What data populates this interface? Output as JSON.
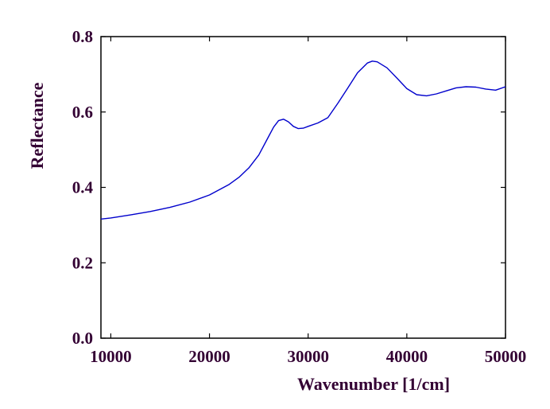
{
  "chart_data": {
    "type": "line",
    "title": "",
    "xlabel": "Wavenumber [1/cm]",
    "ylabel": "Reflectance",
    "xlim": [
      9000,
      50000
    ],
    "ylim": [
      0.0,
      0.8
    ],
    "xticks": [
      10000,
      20000,
      30000,
      40000,
      50000
    ],
    "xtick_labels": [
      "10000",
      "20000",
      "30000",
      "40000",
      "50000"
    ],
    "yticks": [
      0.0,
      0.2,
      0.4,
      0.6,
      0.8
    ],
    "ytick_labels": [
      "0.0",
      "0.2",
      "0.4",
      "0.6",
      "0.8"
    ],
    "grid": false,
    "legend": "none",
    "colors": {
      "line": "#0000cc",
      "text": "#330033",
      "axes": "#000000"
    },
    "series": [
      {
        "x": [
          9000,
          10000,
          12000,
          14000,
          16000,
          18000,
          20000,
          22000,
          23000,
          24000,
          25000,
          26000,
          26500,
          27000,
          27500,
          28000,
          28500,
          29000,
          29500,
          30000,
          31000,
          32000,
          33000,
          34000,
          35000,
          36000,
          36500,
          37000,
          38000,
          39000,
          40000,
          41000,
          42000,
          43000,
          44000,
          45000,
          46000,
          47000,
          48000,
          49000,
          50000
        ],
        "y": [
          0.316,
          0.319,
          0.327,
          0.336,
          0.347,
          0.361,
          0.38,
          0.408,
          0.427,
          0.452,
          0.486,
          0.535,
          0.56,
          0.577,
          0.581,
          0.574,
          0.562,
          0.556,
          0.557,
          0.562,
          0.571,
          0.585,
          0.623,
          0.663,
          0.704,
          0.73,
          0.735,
          0.733,
          0.717,
          0.69,
          0.662,
          0.646,
          0.643,
          0.648,
          0.656,
          0.664,
          0.667,
          0.666,
          0.661,
          0.658,
          0.667
        ]
      }
    ]
  }
}
